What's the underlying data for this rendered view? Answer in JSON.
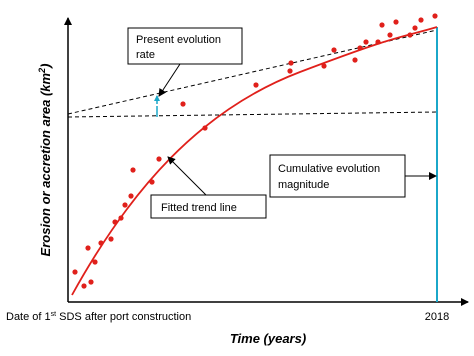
{
  "axes": {
    "y_label": {
      "text": "Erosion or accretion area (km",
      "sup": "2",
      "tail": ")"
    },
    "x_label": "Time (years)",
    "x_start": {
      "text": "Date of 1",
      "sup": "st",
      "tail": " SDS after port construction"
    },
    "x_end": "2018"
  },
  "annotations": {
    "present_rate": [
      "Present evolution",
      "rate"
    ],
    "trend_line": "Fitted trend line",
    "cumulative": [
      "Cumulative evolution",
      "magnitude"
    ]
  }
}
